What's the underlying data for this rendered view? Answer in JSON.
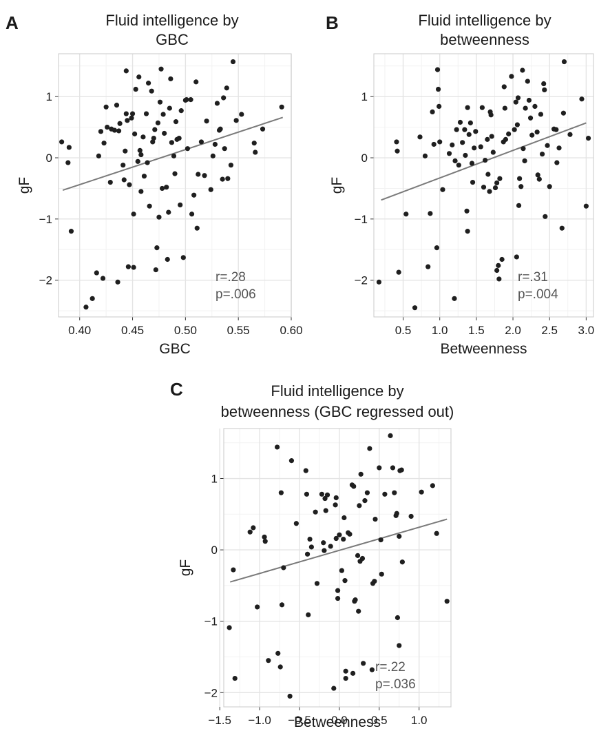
{
  "chart_data": [
    {
      "type": "scatter",
      "panel_label": "A",
      "title": [
        "Fluid intelligence by",
        "GBC"
      ],
      "xlabel": "GBC",
      "ylabel": "gF",
      "xlim": [
        0.38,
        0.6
      ],
      "ylim": [
        -2.6,
        1.7
      ],
      "xticks": [
        0.4,
        0.45,
        0.5,
        0.55,
        0.6
      ],
      "xtick_labels": [
        "0.40",
        "0.45",
        "0.50",
        "0.55",
        "0.60"
      ],
      "yticks": [
        -2,
        -1,
        0,
        1
      ],
      "ytick_labels": [
        "−2",
        "−1",
        "0",
        "1"
      ],
      "grid": true,
      "fit_line": {
        "x": [
          0.384,
          0.592
        ],
        "y": [
          -0.53,
          0.66
        ]
      },
      "annotation": [
        "r=.28",
        "p=.006"
      ],
      "points": [
        [
          0.383,
          0.26
        ],
        [
          0.389,
          -0.08
        ],
        [
          0.39,
          0.17
        ],
        [
          0.392,
          -1.2
        ],
        [
          0.406,
          -2.44
        ],
        [
          0.412,
          -2.3
        ],
        [
          0.416,
          -1.88
        ],
        [
          0.418,
          0.03
        ],
        [
          0.42,
          0.43
        ],
        [
          0.422,
          -1.97
        ],
        [
          0.423,
          0.24
        ],
        [
          0.425,
          0.83
        ],
        [
          0.426,
          0.5
        ],
        [
          0.429,
          -0.4
        ],
        [
          0.43,
          0.47
        ],
        [
          0.433,
          0.45
        ],
        [
          0.435,
          0.86
        ],
        [
          0.436,
          -2.03
        ],
        [
          0.437,
          0.44
        ],
        [
          0.438,
          0.56
        ],
        [
          0.441,
          -0.12
        ],
        [
          0.442,
          -0.36
        ],
        [
          0.443,
          0.11
        ],
        [
          0.444,
          0.72
        ],
        [
          0.444,
          1.42
        ],
        [
          0.445,
          0.61
        ],
        [
          0.446,
          -1.78
        ],
        [
          0.447,
          -0.44
        ],
        [
          0.449,
          0.65
        ],
        [
          0.45,
          0.72
        ],
        [
          0.451,
          -1.79
        ],
        [
          0.451,
          -0.92
        ],
        [
          0.452,
          0.39
        ],
        [
          0.453,
          1.12
        ],
        [
          0.455,
          -0.06
        ],
        [
          0.456,
          1.32
        ],
        [
          0.457,
          0.12
        ],
        [
          0.458,
          0.05
        ],
        [
          0.458,
          -0.55
        ],
        [
          0.46,
          0.34
        ],
        [
          0.461,
          -0.3
        ],
        [
          0.463,
          0.72
        ],
        [
          0.464,
          -0.08
        ],
        [
          0.465,
          1.22
        ],
        [
          0.466,
          -0.79
        ],
        [
          0.468,
          1.09
        ],
        [
          0.469,
          0.26
        ],
        [
          0.47,
          0.32
        ],
        [
          0.471,
          0.46
        ],
        [
          0.472,
          -1.83
        ],
        [
          0.473,
          -1.47
        ],
        [
          0.474,
          0.57
        ],
        [
          0.475,
          -0.97
        ],
        [
          0.476,
          0.91
        ],
        [
          0.477,
          1.45
        ],
        [
          0.478,
          -0.5
        ],
        [
          0.479,
          0.71
        ],
        [
          0.48,
          0.4
        ],
        [
          0.482,
          -0.48
        ],
        [
          0.483,
          -1.66
        ],
        [
          0.484,
          -0.89
        ],
        [
          0.485,
          0.81
        ],
        [
          0.486,
          1.29
        ],
        [
          0.487,
          0.25
        ],
        [
          0.489,
          0.03
        ],
        [
          0.49,
          -0.26
        ],
        [
          0.491,
          0.59
        ],
        [
          0.492,
          0.3
        ],
        [
          0.494,
          0.32
        ],
        [
          0.495,
          -0.77
        ],
        [
          0.496,
          0.77
        ],
        [
          0.498,
          -1.63
        ],
        [
          0.5,
          0.94
        ],
        [
          0.501,
          0.95
        ],
        [
          0.502,
          0.15
        ],
        [
          0.505,
          0.95
        ],
        [
          0.506,
          -0.92
        ],
        [
          0.508,
          -0.61
        ],
        [
          0.51,
          1.24
        ],
        [
          0.511,
          -1.15
        ],
        [
          0.512,
          -0.27
        ],
        [
          0.515,
          0.26
        ],
        [
          0.518,
          -0.29
        ],
        [
          0.52,
          0.6
        ],
        [
          0.524,
          -0.52
        ],
        [
          0.526,
          0.03
        ],
        [
          0.528,
          0.22
        ],
        [
          0.53,
          0.89
        ],
        [
          0.532,
          0.45
        ],
        [
          0.533,
          0.47
        ],
        [
          0.535,
          -0.35
        ],
        [
          0.536,
          0.98
        ],
        [
          0.537,
          0.15
        ],
        [
          0.539,
          1.14
        ],
        [
          0.54,
          -0.34
        ],
        [
          0.543,
          -0.12
        ],
        [
          0.545,
          1.57
        ],
        [
          0.548,
          0.61
        ],
        [
          0.553,
          0.71
        ],
        [
          0.565,
          0.24
        ],
        [
          0.566,
          0.09
        ],
        [
          0.573,
          0.47
        ],
        [
          0.591,
          0.83
        ]
      ]
    },
    {
      "type": "scatter",
      "panel_label": "B",
      "title": [
        "Fluid intelligence by",
        "betweenness"
      ],
      "xlabel": "Betweenness",
      "ylabel": "gF",
      "xlim": [
        0.1,
        3.1
      ],
      "ylim": [
        -2.6,
        1.7
      ],
      "xticks": [
        0.5,
        1.0,
        1.5,
        2.0,
        2.5,
        3.0
      ],
      "xtick_labels": [
        "0.5",
        "1.0",
        "1.5",
        "2.0",
        "2.5",
        "3.0"
      ],
      "yticks": [
        -2,
        -1,
        0,
        1
      ],
      "ytick_labels": [
        "−2",
        "−1",
        "0",
        "1"
      ],
      "grid": true,
      "fit_line": {
        "x": [
          0.2,
          3.0
        ],
        "y": [
          -0.69,
          0.57
        ]
      },
      "annotation": [
        "r=.31",
        "p=.004"
      ],
      "points": [
        [
          0.17,
          -2.03
        ],
        [
          0.41,
          0.26
        ],
        [
          0.42,
          0.11
        ],
        [
          0.44,
          -1.87
        ],
        [
          0.54,
          -0.92
        ],
        [
          0.66,
          -2.45
        ],
        [
          0.73,
          0.34
        ],
        [
          0.8,
          0.03
        ],
        [
          0.84,
          -1.78
        ],
        [
          0.87,
          -0.91
        ],
        [
          0.9,
          0.75
        ],
        [
          0.92,
          0.22
        ],
        [
          0.96,
          -1.47
        ],
        [
          0.97,
          1.44
        ],
        [
          0.98,
          1.12
        ],
        [
          0.99,
          0.84
        ],
        [
          1.0,
          0.26
        ],
        [
          1.04,
          -0.52
        ],
        [
          1.13,
          0.07
        ],
        [
          1.17,
          0.21
        ],
        [
          1.2,
          -2.3
        ],
        [
          1.21,
          -0.05
        ],
        [
          1.23,
          0.46
        ],
        [
          1.26,
          -0.12
        ],
        [
          1.28,
          0.58
        ],
        [
          1.31,
          0.25
        ],
        [
          1.34,
          0.46
        ],
        [
          1.35,
          0.04
        ],
        [
          1.37,
          -0.87
        ],
        [
          1.38,
          -1.2
        ],
        [
          1.38,
          0.82
        ],
        [
          1.4,
          0.38
        ],
        [
          1.42,
          0.57
        ],
        [
          1.44,
          -0.09
        ],
        [
          1.45,
          -0.4
        ],
        [
          1.47,
          0.16
        ],
        [
          1.49,
          0.43
        ],
        [
          1.56,
          0.18
        ],
        [
          1.58,
          0.82
        ],
        [
          1.6,
          -0.48
        ],
        [
          1.62,
          -0.04
        ],
        [
          1.65,
          0.3
        ],
        [
          1.66,
          -0.27
        ],
        [
          1.68,
          -0.55
        ],
        [
          1.69,
          0.75
        ],
        [
          1.7,
          0.7
        ],
        [
          1.71,
          0.35
        ],
        [
          1.73,
          0.09
        ],
        [
          1.76,
          -0.49
        ],
        [
          1.78,
          -1.84
        ],
        [
          1.78,
          -0.41
        ],
        [
          1.8,
          -1.76
        ],
        [
          1.81,
          -1.98
        ],
        [
          1.82,
          -0.34
        ],
        [
          1.85,
          -1.66
        ],
        [
          1.87,
          0.26
        ],
        [
          1.88,
          1.16
        ],
        [
          1.89,
          0.81
        ],
        [
          1.9,
          0.3
        ],
        [
          1.94,
          0.39
        ],
        [
          1.98,
          1.33
        ],
        [
          2.02,
          0.46
        ],
        [
          2.04,
          0.91
        ],
        [
          2.05,
          -1.62
        ],
        [
          2.06,
          0.54
        ],
        [
          2.07,
          0.98
        ],
        [
          2.08,
          -0.78
        ],
        [
          2.09,
          -0.34
        ],
        [
          2.11,
          -0.47
        ],
        [
          2.13,
          1.43
        ],
        [
          2.14,
          0.15
        ],
        [
          2.16,
          -0.05
        ],
        [
          2.17,
          0.81
        ],
        [
          2.2,
          1.25
        ],
        [
          2.22,
          0.94
        ],
        [
          2.24,
          0.65
        ],
        [
          2.26,
          0.37
        ],
        [
          2.3,
          0.84
        ],
        [
          2.33,
          0.42
        ],
        [
          2.34,
          -0.28
        ],
        [
          2.36,
          -0.35
        ],
        [
          2.38,
          0.71
        ],
        [
          2.4,
          0.06
        ],
        [
          2.42,
          1.21
        ],
        [
          2.43,
          1.11
        ],
        [
          2.44,
          -0.96
        ],
        [
          2.47,
          0.2
        ],
        [
          2.5,
          -0.47
        ],
        [
          2.56,
          0.47
        ],
        [
          2.59,
          0.46
        ],
        [
          2.6,
          -0.08
        ],
        [
          2.63,
          0.16
        ],
        [
          2.67,
          -1.15
        ],
        [
          2.69,
          0.73
        ],
        [
          2.7,
          1.57
        ],
        [
          2.78,
          0.38
        ],
        [
          2.94,
          0.96
        ],
        [
          3.0,
          -0.79
        ],
        [
          3.03,
          0.32
        ]
      ]
    },
    {
      "type": "scatter",
      "panel_label": "C",
      "title": [
        "Fluid intelligence by",
        "betweenness (GBC regressed out)"
      ],
      "xlabel": "Betweenness",
      "ylabel": "gF",
      "xlim": [
        -1.45,
        1.4
      ],
      "ylim": [
        -2.2,
        1.7
      ],
      "xticks": [
        -1.5,
        -1.0,
        -0.5,
        0.0,
        0.5,
        1.0
      ],
      "xtick_labels": [
        "−1.5",
        "−1.0",
        "−0.5",
        "0.0",
        "0.5",
        "1.0"
      ],
      "yticks": [
        -2,
        -1,
        0,
        1
      ],
      "ytick_labels": [
        "−2",
        "−1",
        "0",
        "1"
      ],
      "grid": true,
      "fit_line": {
        "x": [
          -1.37,
          1.35
        ],
        "y": [
          -0.45,
          0.43
        ]
      },
      "annotation": [
        "r=.22",
        "p=.036"
      ],
      "points": [
        [
          -1.38,
          -1.09
        ],
        [
          -1.33,
          -0.28
        ],
        [
          -1.31,
          -1.8
        ],
        [
          -1.12,
          0.25
        ],
        [
          -1.08,
          0.31
        ],
        [
          -1.03,
          -0.8
        ],
        [
          -0.94,
          0.18
        ],
        [
          -0.93,
          0.12
        ],
        [
          -0.89,
          -1.55
        ],
        [
          -0.78,
          1.44
        ],
        [
          -0.77,
          -1.45
        ],
        [
          -0.74,
          -1.64
        ],
        [
          -0.73,
          0.8
        ],
        [
          -0.72,
          -0.77
        ],
        [
          -0.7,
          -0.25
        ],
        [
          -0.62,
          -2.05
        ],
        [
          -0.6,
          1.25
        ],
        [
          -0.54,
          0.37
        ],
        [
          -0.42,
          1.11
        ],
        [
          -0.41,
          0.78
        ],
        [
          -0.4,
          -0.06
        ],
        [
          -0.39,
          -0.91
        ],
        [
          -0.37,
          0.15
        ],
        [
          -0.35,
          0.04
        ],
        [
          -0.3,
          0.53
        ],
        [
          -0.28,
          -0.47
        ],
        [
          -0.22,
          0.78
        ],
        [
          -0.2,
          0.1
        ],
        [
          -0.19,
          -0.01
        ],
        [
          -0.18,
          0.72
        ],
        [
          -0.17,
          0.55
        ],
        [
          -0.15,
          0.77
        ],
        [
          -0.11,
          0.05
        ],
        [
          -0.07,
          -1.94
        ],
        [
          -0.05,
          0.63
        ],
        [
          -0.04,
          0.16
        ],
        [
          -0.04,
          0.73
        ],
        [
          -0.02,
          -0.57
        ],
        [
          -0.02,
          -0.68
        ],
        [
          0.0,
          0.21
        ],
        [
          0.03,
          -0.29
        ],
        [
          0.05,
          0.15
        ],
        [
          0.06,
          0.45
        ],
        [
          0.07,
          -0.43
        ],
        [
          0.08,
          -1.7
        ],
        [
          0.08,
          -1.8
        ],
        [
          0.11,
          0.24
        ],
        [
          0.13,
          0.22
        ],
        [
          0.16,
          0.91
        ],
        [
          0.17,
          -1.73
        ],
        [
          0.18,
          0.89
        ],
        [
          0.19,
          -0.72
        ],
        [
          0.2,
          -0.7
        ],
        [
          0.23,
          -0.08
        ],
        [
          0.24,
          -0.86
        ],
        [
          0.25,
          0.62
        ],
        [
          0.26,
          -0.16
        ],
        [
          0.27,
          1.06
        ],
        [
          0.29,
          -0.12
        ],
        [
          0.3,
          -1.59
        ],
        [
          0.32,
          0.69
        ],
        [
          0.35,
          0.8
        ],
        [
          0.38,
          1.42
        ],
        [
          0.41,
          -1.68
        ],
        [
          0.42,
          -0.47
        ],
        [
          0.44,
          -0.44
        ],
        [
          0.45,
          0.43
        ],
        [
          0.5,
          1.15
        ],
        [
          0.52,
          0.14
        ],
        [
          0.53,
          -0.34
        ],
        [
          0.57,
          0.78
        ],
        [
          0.64,
          1.6
        ],
        [
          0.67,
          1.15
        ],
        [
          0.69,
          0.8
        ],
        [
          0.71,
          0.48
        ],
        [
          0.72,
          0.51
        ],
        [
          0.73,
          -0.95
        ],
        [
          0.75,
          -1.34
        ],
        [
          0.75,
          0.19
        ],
        [
          0.76,
          1.11
        ],
        [
          0.78,
          1.12
        ],
        [
          0.79,
          -0.17
        ],
        [
          0.9,
          0.47
        ],
        [
          1.03,
          0.81
        ],
        [
          1.17,
          0.9
        ],
        [
          1.22,
          0.23
        ],
        [
          1.35,
          -0.72
        ]
      ]
    }
  ]
}
